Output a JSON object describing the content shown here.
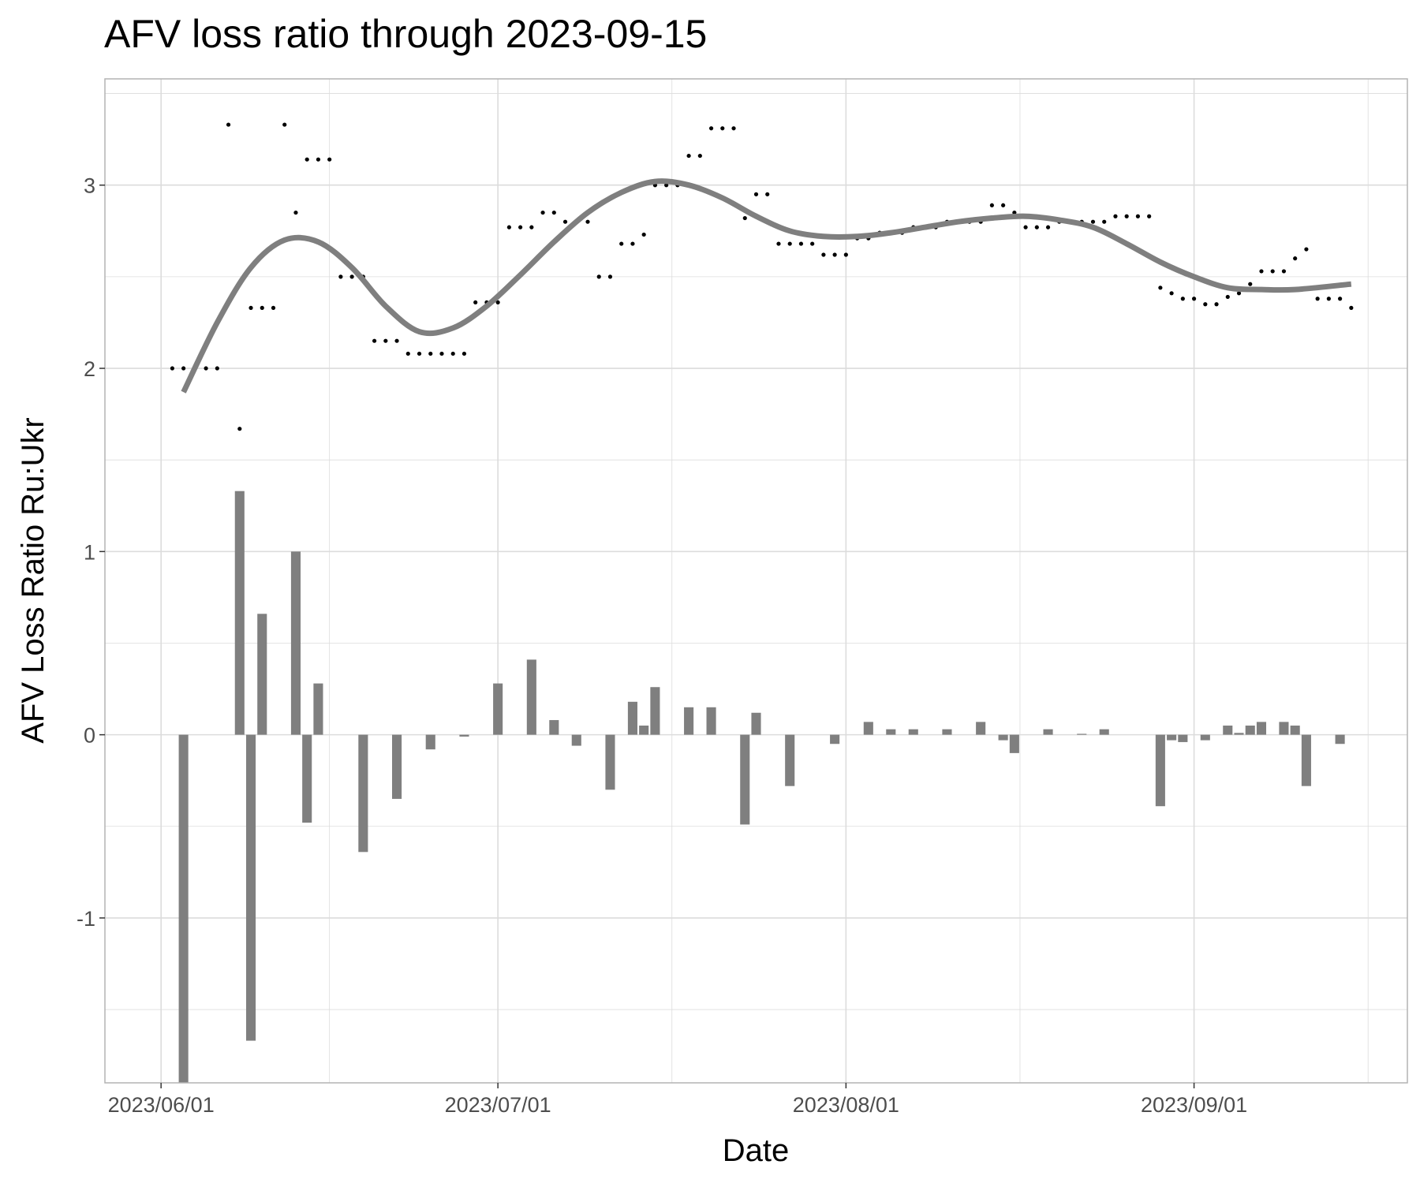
{
  "chart_data": {
    "type": "bar+scatter+line",
    "title": "AFV loss ratio through 2023-09-15",
    "xlabel": "Date",
    "ylabel": "AFV Loss Ratio Ru:Ukr",
    "xlim": [
      "2023-05-27",
      "2023-09-20"
    ],
    "ylim": [
      -1.9,
      3.58
    ],
    "grid": true,
    "legend": "none",
    "x_ticks": [
      "2023-06-01",
      "2023-07-01",
      "2023-08-01",
      "2023-09-01"
    ],
    "x_tick_labels": [
      "2023/06/01",
      "2023/07/01",
      "2023/08/01",
      "2023/09/01"
    ],
    "y_ticks": [
      -1,
      0,
      1,
      2,
      3
    ],
    "y_tick_labels": [
      "-1",
      "0",
      "1",
      "2",
      "3"
    ],
    "colors": {
      "bars": "#7f7f7f",
      "trend": "#7f7f7f",
      "points": "#000000",
      "grid": "#dcdcdc",
      "panel_border": "#b3b3b3"
    },
    "series": [
      {
        "kind": "points",
        "x": [
          "2023-06-02",
          "2023-06-03",
          "2023-06-04",
          "2023-06-05",
          "2023-06-06",
          "2023-06-07",
          "2023-06-08",
          "2023-06-09",
          "2023-06-10",
          "2023-06-11",
          "2023-06-12",
          "2023-06-13",
          "2023-06-14",
          "2023-06-15",
          "2023-06-16",
          "2023-06-17",
          "2023-06-18",
          "2023-06-19",
          "2023-06-20",
          "2023-06-21",
          "2023-06-22",
          "2023-06-23",
          "2023-06-24",
          "2023-06-25",
          "2023-06-26",
          "2023-06-27",
          "2023-06-28",
          "2023-06-29",
          "2023-06-30",
          "2023-07-01",
          "2023-07-02",
          "2023-07-03",
          "2023-07-04",
          "2023-07-05",
          "2023-07-06",
          "2023-07-07",
          "2023-07-08",
          "2023-07-09",
          "2023-07-10",
          "2023-07-11",
          "2023-07-12",
          "2023-07-13",
          "2023-07-14",
          "2023-07-15",
          "2023-07-16",
          "2023-07-17",
          "2023-07-18",
          "2023-07-19",
          "2023-07-20",
          "2023-07-21",
          "2023-07-22",
          "2023-07-23",
          "2023-07-24",
          "2023-07-25",
          "2023-07-26",
          "2023-07-27",
          "2023-07-28",
          "2023-07-29",
          "2023-07-30",
          "2023-07-31",
          "2023-08-01",
          "2023-08-02",
          "2023-08-03",
          "2023-08-04",
          "2023-08-05",
          "2023-08-06",
          "2023-08-07",
          "2023-08-08",
          "2023-08-09",
          "2023-08-10",
          "2023-08-11",
          "2023-08-12",
          "2023-08-13",
          "2023-08-14",
          "2023-08-15",
          "2023-08-16",
          "2023-08-17",
          "2023-08-18",
          "2023-08-19",
          "2023-08-20",
          "2023-08-21",
          "2023-08-22",
          "2023-08-23",
          "2023-08-24",
          "2023-08-25",
          "2023-08-26",
          "2023-08-27",
          "2023-08-28",
          "2023-08-29",
          "2023-08-30",
          "2023-08-31",
          "2023-09-01",
          "2023-09-02",
          "2023-09-03",
          "2023-09-04",
          "2023-09-05",
          "2023-09-06",
          "2023-09-07",
          "2023-09-08",
          "2023-09-09",
          "2023-09-10",
          "2023-09-11",
          "2023-09-12",
          "2023-09-13",
          "2023-09-14",
          "2023-09-15"
        ],
        "y": [
          2.0,
          2.0,
          2.0,
          2.0,
          2.0,
          3.33,
          1.67,
          2.33,
          2.33,
          2.33,
          3.33,
          2.85,
          3.14,
          3.14,
          3.14,
          2.5,
          2.5,
          2.5,
          2.15,
          2.15,
          2.15,
          2.08,
          2.08,
          2.08,
          2.08,
          2.08,
          2.08,
          2.36,
          2.36,
          2.36,
          2.77,
          2.77,
          2.77,
          2.85,
          2.85,
          2.8,
          2.8,
          2.8,
          2.5,
          2.5,
          2.68,
          2.68,
          2.73,
          3.0,
          3.0,
          3.0,
          3.16,
          3.16,
          3.31,
          3.31,
          3.31,
          2.82,
          2.95,
          2.95,
          2.68,
          2.68,
          2.68,
          2.68,
          2.62,
          2.62,
          2.62,
          2.71,
          2.71,
          2.74,
          2.74,
          2.74,
          2.77,
          2.77,
          2.77,
          2.8,
          2.8,
          2.8,
          2.8,
          2.89,
          2.89,
          2.85,
          2.77,
          2.77,
          2.77,
          2.8,
          2.8,
          2.8,
          2.8,
          2.8,
          2.83,
          2.83,
          2.83,
          2.83,
          2.44,
          2.41,
          2.38,
          2.38,
          2.35,
          2.35,
          2.39,
          2.41,
          2.46,
          2.53,
          2.53,
          2.53,
          2.6,
          2.65,
          2.38,
          2.38,
          2.38,
          2.33
        ]
      },
      {
        "kind": "bars",
        "x": [
          "2023-06-03",
          "2023-06-08",
          "2023-06-09",
          "2023-06-10",
          "2023-06-13",
          "2023-06-14",
          "2023-06-15",
          "2023-06-19",
          "2023-06-22",
          "2023-06-25",
          "2023-06-28",
          "2023-07-01",
          "2023-07-04",
          "2023-07-06",
          "2023-07-08",
          "2023-07-11",
          "2023-07-13",
          "2023-07-14",
          "2023-07-15",
          "2023-07-18",
          "2023-07-20",
          "2023-07-23",
          "2023-07-24",
          "2023-07-27",
          "2023-07-31",
          "2023-08-03",
          "2023-08-05",
          "2023-08-07",
          "2023-08-10",
          "2023-08-13",
          "2023-08-15",
          "2023-08-16",
          "2023-08-19",
          "2023-08-22",
          "2023-08-24",
          "2023-08-29",
          "2023-08-30",
          "2023-08-31",
          "2023-09-02",
          "2023-09-04",
          "2023-09-05",
          "2023-09-06",
          "2023-09-07",
          "2023-09-09",
          "2023-09-10",
          "2023-09-11",
          "2023-09-14"
        ],
        "values": [
          -1.9,
          1.33,
          -1.67,
          0.66,
          1.0,
          -0.48,
          0.28,
          -0.64,
          -0.35,
          -0.08,
          -0.01,
          0.28,
          0.41,
          0.08,
          -0.06,
          -0.3,
          0.18,
          0.05,
          0.26,
          0.15,
          0.15,
          -0.49,
          0.12,
          -0.28,
          -0.05,
          0.07,
          0.03,
          0.03,
          0.03,
          0.07,
          -0.03,
          -0.1,
          0.03,
          0.005,
          0.03,
          -0.39,
          -0.03,
          -0.04,
          -0.03,
          0.05,
          0.01,
          0.05,
          0.07,
          0.07,
          0.05,
          -0.28,
          -0.05
        ]
      },
      {
        "kind": "smooth",
        "x": [
          "2023-06-03",
          "2023-06-06",
          "2023-06-09",
          "2023-06-12",
          "2023-06-15",
          "2023-06-18",
          "2023-06-21",
          "2023-06-24",
          "2023-06-27",
          "2023-06-30",
          "2023-07-03",
          "2023-07-06",
          "2023-07-09",
          "2023-07-12",
          "2023-07-15",
          "2023-07-18",
          "2023-07-21",
          "2023-07-24",
          "2023-07-27",
          "2023-07-30",
          "2023-08-02",
          "2023-08-05",
          "2023-08-08",
          "2023-08-11",
          "2023-08-14",
          "2023-08-17",
          "2023-08-20",
          "2023-08-23",
          "2023-08-26",
          "2023-08-29",
          "2023-09-01",
          "2023-09-04",
          "2023-09-07",
          "2023-09-10",
          "2023-09-15"
        ],
        "values": [
          1.87,
          2.25,
          2.55,
          2.7,
          2.69,
          2.55,
          2.34,
          2.2,
          2.22,
          2.34,
          2.51,
          2.69,
          2.85,
          2.96,
          3.02,
          3.0,
          2.93,
          2.83,
          2.75,
          2.72,
          2.72,
          2.74,
          2.77,
          2.8,
          2.82,
          2.83,
          2.81,
          2.77,
          2.68,
          2.58,
          2.5,
          2.44,
          2.43,
          2.43,
          2.46
        ]
      }
    ]
  }
}
